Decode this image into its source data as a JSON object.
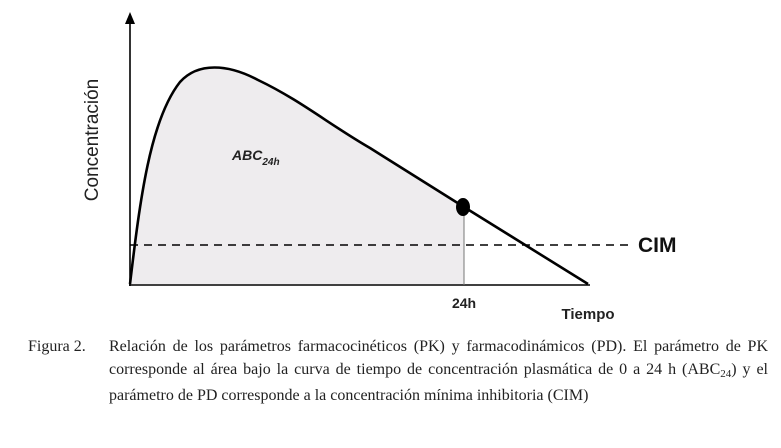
{
  "diagram": {
    "y_axis_label": "Concentración",
    "x_axis_label": "Tiempo",
    "area_label_main": "ABC",
    "area_label_sub": "24h",
    "time_marker_label": "24h",
    "threshold_label": "CIM",
    "colors": {
      "curve": "#000000",
      "area_fill": "#eeecee",
      "threshold_line": "#000000",
      "marker": "#000000"
    }
  },
  "caption": {
    "label": "Figura 2.",
    "text_before_sub": "Relación de los parámetros farmacocinéticos (PK) y farmacodinámicos (PD). El parámetro de PK corresponde al área bajo la curva de tiempo de concentración plasmática de 0 a 24 h (ABC",
    "subscript": "24",
    "text_after_sub": ") y el parámetro de PD corresponde a la concentración mínima inhibitoria (CIM)"
  }
}
